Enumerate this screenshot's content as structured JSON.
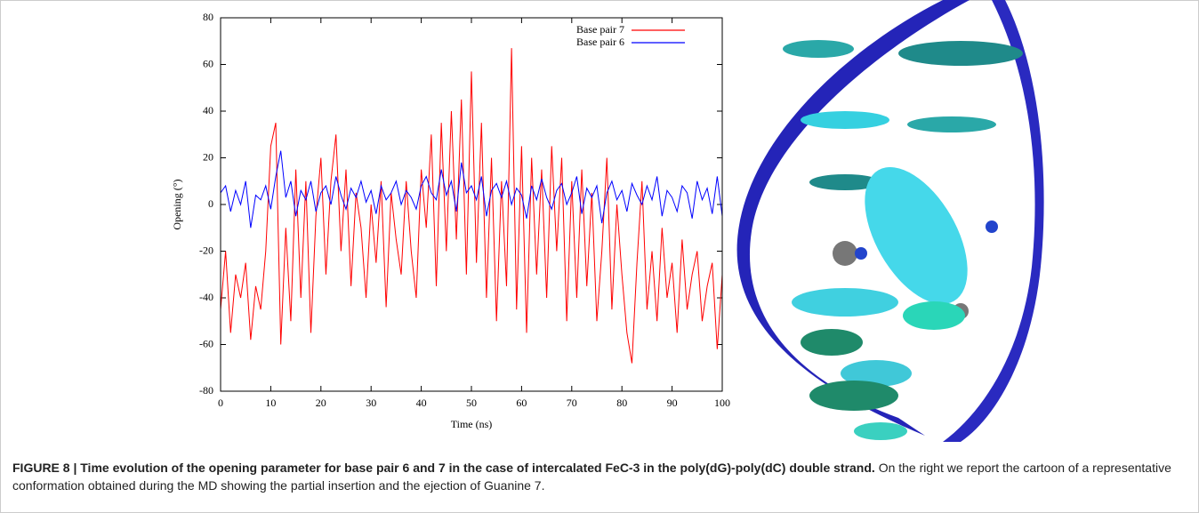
{
  "chart_data": {
    "type": "line",
    "xlabel": "Time (ns)",
    "ylabel": "Opening (°)",
    "x": [
      0,
      1,
      2,
      3,
      4,
      5,
      6,
      7,
      8,
      9,
      10,
      11,
      12,
      13,
      14,
      15,
      16,
      17,
      18,
      19,
      20,
      21,
      22,
      23,
      24,
      25,
      26,
      27,
      28,
      29,
      30,
      31,
      32,
      33,
      34,
      35,
      36,
      37,
      38,
      39,
      40,
      41,
      42,
      43,
      44,
      45,
      46,
      47,
      48,
      49,
      50,
      51,
      52,
      53,
      54,
      55,
      56,
      57,
      58,
      59,
      60,
      61,
      62,
      63,
      64,
      65,
      66,
      67,
      68,
      69,
      70,
      71,
      72,
      73,
      74,
      75,
      76,
      77,
      78,
      79,
      80,
      81,
      82,
      83,
      84,
      85,
      86,
      87,
      88,
      89,
      90,
      91,
      92,
      93,
      94,
      95,
      96,
      97,
      98,
      99,
      100
    ],
    "series": [
      {
        "name": "Base pair 7",
        "color": "#ff0000",
        "values": [
          -45,
          -20,
          -55,
          -30,
          -40,
          -25,
          -58,
          -35,
          -45,
          -20,
          25,
          35,
          -60,
          -10,
          -50,
          15,
          -40,
          10,
          -55,
          -5,
          20,
          -30,
          10,
          30,
          -20,
          15,
          -35,
          5,
          -10,
          -40,
          0,
          -25,
          10,
          -44,
          5,
          -15,
          -30,
          10,
          -20,
          -40,
          15,
          -10,
          30,
          -35,
          35,
          -20,
          40,
          -15,
          45,
          -30,
          57,
          -25,
          35,
          -40,
          20,
          -50,
          10,
          -35,
          67,
          -45,
          25,
          -55,
          20,
          -30,
          15,
          -40,
          25,
          -20,
          20,
          -50,
          10,
          -40,
          15,
          -35,
          5,
          -50,
          -20,
          20,
          -45,
          0,
          -30,
          -55,
          -68,
          -25,
          10,
          -45,
          -20,
          -50,
          -10,
          -40,
          -25,
          -55,
          -15,
          -45,
          -30,
          -20,
          -50,
          -35,
          -25,
          -62,
          -30
        ]
      },
      {
        "name": "Base pair 6",
        "color": "#0000ff",
        "values": [
          5,
          8,
          -3,
          6,
          0,
          10,
          -10,
          4,
          2,
          8,
          -2,
          12,
          23,
          3,
          10,
          -5,
          6,
          2,
          10,
          -3,
          5,
          8,
          0,
          12,
          4,
          -2,
          7,
          3,
          10,
          1,
          6,
          -4,
          8,
          2,
          5,
          10,
          0,
          6,
          3,
          -2,
          8,
          12,
          5,
          2,
          15,
          4,
          10,
          -3,
          18,
          5,
          8,
          2,
          12,
          -5,
          6,
          9,
          3,
          10,
          0,
          7,
          4,
          -6,
          8,
          2,
          11,
          3,
          -2,
          6,
          9,
          0,
          5,
          12,
          -4,
          7,
          3,
          8,
          -8,
          5,
          10,
          2,
          6,
          -3,
          9,
          4,
          0,
          8,
          2,
          12,
          -5,
          6,
          3,
          -3,
          8,
          5,
          -6,
          10,
          2,
          7,
          -4,
          12,
          -5
        ]
      }
    ],
    "xlim": [
      0,
      100
    ],
    "xticks": [
      0,
      10,
      20,
      30,
      40,
      50,
      60,
      70,
      80,
      90,
      100
    ],
    "ylim": [
      -80,
      80
    ],
    "yticks": [
      -80,
      -60,
      -40,
      -20,
      0,
      20,
      40,
      60,
      80
    ],
    "legend": "upper right"
  },
  "caption": {
    "label": "FIGURE 8 | Time evolution of the opening parameter for base pair 6 and 7 in the case of intercalated FeC-3 in the poly(dG)-poly(dC) double strand.",
    "text": "On the right we report the cartoon of a representative conformation obtained during the MD showing the partial insertion and the ejection of Guanine 7."
  }
}
